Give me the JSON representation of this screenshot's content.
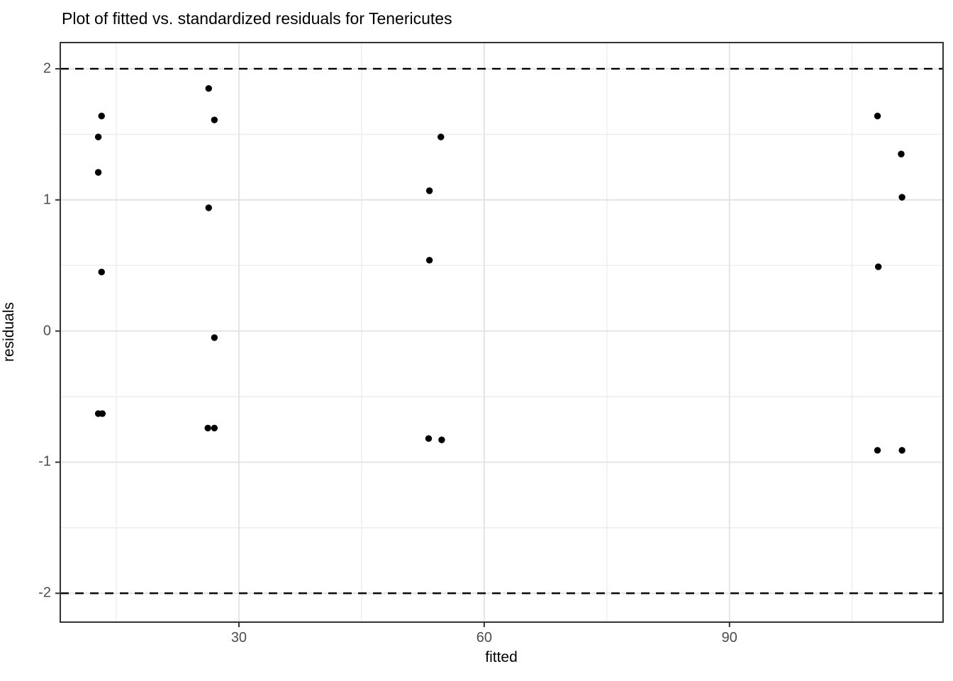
{
  "chart": {
    "title": "Plot of fitted vs. standardized residuals for Tenericutes",
    "xlabel": "fitted",
    "ylabel": "residuals"
  },
  "chart_data": {
    "type": "scatter",
    "title": "Plot of fitted vs. standardized residuals for Tenericutes",
    "xlabel": "fitted",
    "ylabel": "residuals",
    "xlim": [
      8.15,
      116.12
    ],
    "ylim": [
      -2.22,
      2.2
    ],
    "x_major_ticks": [
      30,
      60,
      90
    ],
    "x_minor_ticks": [
      15,
      45,
      75,
      105
    ],
    "y_major_ticks": [
      -2,
      -1,
      0,
      1,
      2
    ],
    "y_minor_ticks": [
      -1.5,
      -0.5,
      0.5,
      1.5
    ],
    "reference_lines": [
      {
        "y": 2,
        "style": "dashed",
        "color": "#000000"
      },
      {
        "y": -2,
        "style": "dashed",
        "color": "#000000"
      }
    ],
    "grid": "on",
    "legend": "none",
    "point_color": "#000000",
    "points": [
      [
        13.2,
        1.64
      ],
      [
        12.8,
        1.48
      ],
      [
        12.8,
        1.21
      ],
      [
        13.2,
        0.45
      ],
      [
        12.8,
        -0.63
      ],
      [
        13.3,
        -0.63
      ],
      [
        26.3,
        1.85
      ],
      [
        27.0,
        1.61
      ],
      [
        26.3,
        0.94
      ],
      [
        27.0,
        -0.05
      ],
      [
        26.2,
        -0.74
      ],
      [
        27.0,
        -0.74
      ],
      [
        54.7,
        1.48
      ],
      [
        53.3,
        1.07
      ],
      [
        53.3,
        0.54
      ],
      [
        53.2,
        -0.82
      ],
      [
        54.8,
        -0.83
      ],
      [
        108.1,
        1.64
      ],
      [
        111.0,
        1.35
      ],
      [
        111.1,
        1.02
      ],
      [
        108.2,
        0.49
      ],
      [
        108.1,
        -0.91
      ],
      [
        111.1,
        -0.91
      ]
    ],
    "colors": {
      "background": "#FFFFFF",
      "panel_background": "#FFFFFF",
      "grid_major": "#E2E2E2",
      "grid_minor": "#ECECEC",
      "panel_border": "#333333",
      "tick_mark": "#333333",
      "tick_label": "#4D4D4D",
      "text": "#000000",
      "point": "#000000"
    }
  }
}
